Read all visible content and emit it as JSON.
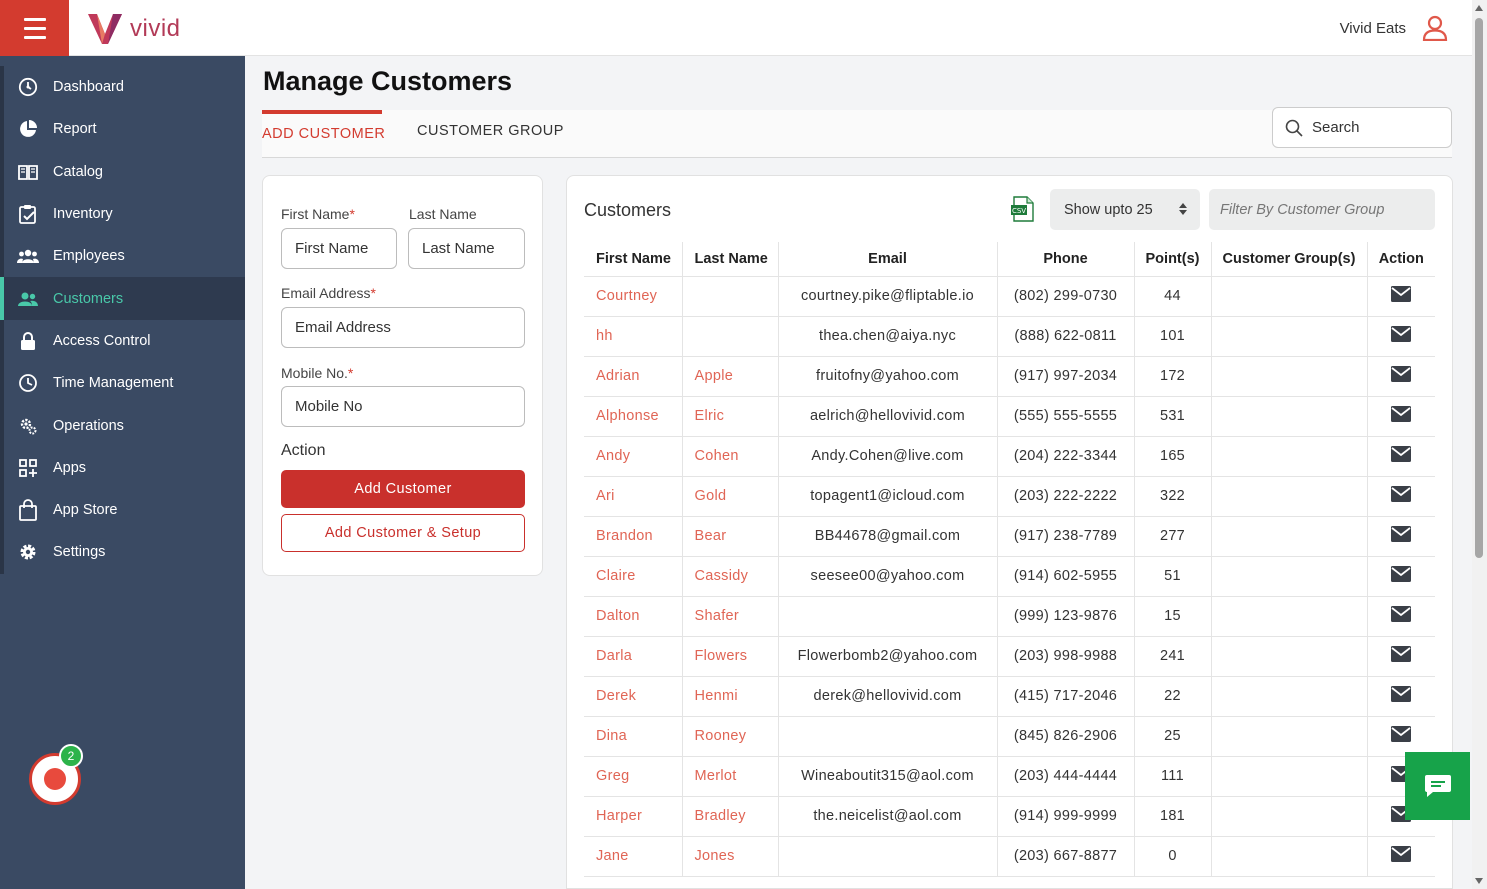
{
  "app": {
    "logo_text": "vivid",
    "brand_name": "Vivid Eats"
  },
  "sidebar": {
    "items": [
      {
        "label": "Dashboard",
        "icon": "dashboard-icon"
      },
      {
        "label": "Report",
        "icon": "pie-chart-icon"
      },
      {
        "label": "Catalog",
        "icon": "book-icon"
      },
      {
        "label": "Inventory",
        "icon": "clipboard-icon"
      },
      {
        "label": "Employees",
        "icon": "users-icon"
      },
      {
        "label": "Customers",
        "icon": "customers-icon",
        "active": true
      },
      {
        "label": "Access Control",
        "icon": "lock-icon"
      },
      {
        "label": "Time Management",
        "icon": "clock-icon"
      },
      {
        "label": "Operations",
        "icon": "gears-icon"
      },
      {
        "label": "Apps",
        "icon": "apps-icon"
      },
      {
        "label": "App Store",
        "icon": "shopping-bag-icon"
      },
      {
        "label": "Settings",
        "icon": "gear-icon"
      }
    ],
    "notification_count": "2"
  },
  "page": {
    "title": "Manage Customers",
    "tabs": [
      "ADD CUSTOMER",
      "CUSTOMER GROUP"
    ],
    "search_label": "Search"
  },
  "form": {
    "first_name_label": "First Name",
    "first_name_placeholder": "First Name",
    "last_name_label": "Last Name",
    "last_name_placeholder": "Last Name",
    "email_label": "Email Address",
    "email_placeholder": "Email Address",
    "mobile_label": "Mobile No.",
    "mobile_placeholder": "Mobile No",
    "required_mark": "*",
    "action_label": "Action",
    "add_button": "Add Customer",
    "add_setup_button": "Add Customer & Setup"
  },
  "customers": {
    "title": "Customers",
    "show_upto": "Show upto 25",
    "filter_placeholder": "Filter By Customer Group",
    "csv_label": "CSV",
    "columns": [
      "First Name",
      "Last Name",
      "Email",
      "Phone",
      "Point(s)",
      "Customer Group(s)",
      "Action"
    ],
    "rows": [
      {
        "first": "Courtney",
        "last": "",
        "email": "courtney.pike@fliptable.io",
        "phone": "(802) 299-0730",
        "points": "44",
        "group": ""
      },
      {
        "first": "hh",
        "last": "",
        "email": "thea.chen@aiya.nyc",
        "phone": "(888) 622-0811",
        "points": "101",
        "group": ""
      },
      {
        "first": "Adrian",
        "last": "Apple",
        "email": "fruitofny@yahoo.com",
        "phone": "(917) 997-2034",
        "points": "172",
        "group": ""
      },
      {
        "first": "Alphonse",
        "last": "Elric",
        "email": "aelrich@hellovivid.com",
        "phone": "(555) 555-5555",
        "points": "531",
        "group": ""
      },
      {
        "first": "Andy",
        "last": "Cohen",
        "email": "Andy.Cohen@live.com",
        "phone": "(204) 222-3344",
        "points": "165",
        "group": ""
      },
      {
        "first": "Ari",
        "last": "Gold",
        "email": "topagent1@icloud.com",
        "phone": "(203) 222-2222",
        "points": "322",
        "group": ""
      },
      {
        "first": "Brandon",
        "last": "Bear",
        "email": "BB44678@gmail.com",
        "phone": "(917) 238-7789",
        "points": "277",
        "group": ""
      },
      {
        "first": "Claire",
        "last": "Cassidy",
        "email": "seesee00@yahoo.com",
        "phone": "(914) 602-5955",
        "points": "51",
        "group": ""
      },
      {
        "first": "Dalton",
        "last": "Shafer",
        "email": "",
        "phone": "(999) 123-9876",
        "points": "15",
        "group": ""
      },
      {
        "first": "Darla",
        "last": "Flowers",
        "email": "Flowerbomb2@yahoo.com",
        "phone": "(203) 998-9988",
        "points": "241",
        "group": ""
      },
      {
        "first": "Derek",
        "last": "Henmi",
        "email": "derek@hellovivid.com",
        "phone": "(415) 717-2046",
        "points": "22",
        "group": ""
      },
      {
        "first": "Dina",
        "last": "Rooney",
        "email": "",
        "phone": "(845) 826-2906",
        "points": "25",
        "group": ""
      },
      {
        "first": "Greg",
        "last": "Merlot",
        "email": "Wineaboutit315@aol.com",
        "phone": "(203) 444-4444",
        "points": "111",
        "group": ""
      },
      {
        "first": "Harper",
        "last": "Bradley",
        "email": "the.neicelist@aol.com",
        "phone": "(914) 999-9999",
        "points": "181",
        "group": ""
      },
      {
        "first": "Jane",
        "last": "Jones",
        "email": "",
        "phone": "(203) 667-8877",
        "points": "0",
        "group": ""
      }
    ]
  },
  "colors": {
    "accent": "#d33b2f",
    "sidebar_bg": "#3a4a63",
    "active_nav": "#49c8a9",
    "name_link": "#e06555",
    "chat": "#17a34a"
  }
}
